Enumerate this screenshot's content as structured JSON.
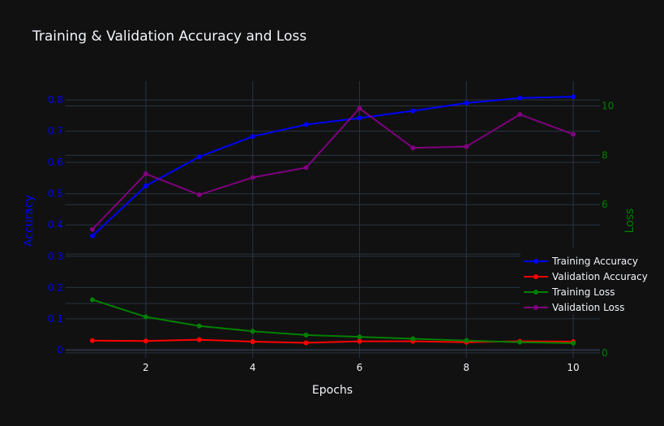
{
  "chart_data": {
    "type": "line",
    "title": "Training & Validation Accuracy and Loss",
    "xlabel": "Epochs",
    "ylabel_left": "Accuracy",
    "ylabel_right": "Loss",
    "x": [
      1,
      2,
      3,
      4,
      5,
      6,
      7,
      8,
      9,
      10
    ],
    "x_ticks": [
      2,
      4,
      6,
      8,
      10
    ],
    "y_left_ticks": [
      0,
      0.1,
      0.2,
      0.3,
      0.4,
      0.5,
      0.6,
      0.7,
      0.8
    ],
    "y_left_tick_labels": [
      "0",
      "0.1",
      "0.2",
      "0.3",
      "0.4",
      "0.5",
      "0.6",
      "0.7",
      "0.8"
    ],
    "y_right_ticks": [
      0,
      2,
      4,
      6,
      8,
      10
    ],
    "y_right_tick_labels": [
      "0",
      "",
      "",
      "6",
      "8",
      "10"
    ],
    "xlim": [
      0.5,
      10.5
    ],
    "ylim_left": [
      -0.025,
      0.86
    ],
    "ylim_right": [
      -0.2,
      11
    ],
    "grid": true,
    "legend_position": "right",
    "colors": {
      "background": "#111111",
      "grid": "#283442",
      "text": "#f2f5fa",
      "left_axis": "#0000ff",
      "right_axis": "#008000"
    },
    "series": [
      {
        "name": "Training Accuracy",
        "axis": "left",
        "color": "#0000ff",
        "values": [
          0.365,
          0.525,
          0.618,
          0.683,
          0.721,
          0.742,
          0.765,
          0.79,
          0.806,
          0.81
        ]
      },
      {
        "name": "Validation Accuracy",
        "axis": "left",
        "color": "#ff0000",
        "values": [
          0.03,
          0.029,
          0.033,
          0.027,
          0.023,
          0.028,
          0.028,
          0.025,
          0.028,
          0.027
        ]
      },
      {
        "name": "Training Loss",
        "axis": "left",
        "color": "#008000",
        "values": [
          0.161,
          0.106,
          0.077,
          0.06,
          0.048,
          0.042,
          0.036,
          0.03,
          0.025,
          0.022
        ]
      },
      {
        "name": "Validation Loss",
        "axis": "right",
        "color": "#800080",
        "values": [
          5.0,
          7.25,
          6.4,
          7.1,
          7.5,
          9.9,
          8.3,
          8.35,
          9.65,
          8.85
        ]
      }
    ]
  }
}
